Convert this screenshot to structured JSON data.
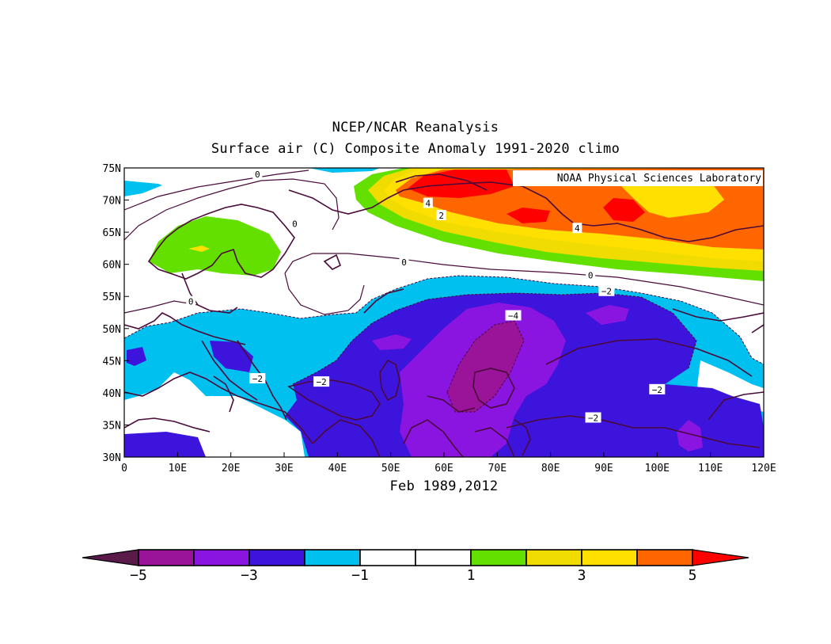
{
  "title": "NCEP/NCAR Reanalysis",
  "subtitle": "Surface air (C) Composite Anomaly 1991-2020 climo",
  "time_label": "Feb 1989,2012",
  "credit": "NOAA Physical Sciences Laboratory",
  "lat_labels": [
    "30N",
    "35N",
    "40N",
    "45N",
    "50N",
    "55N",
    "60N",
    "65N",
    "70N",
    "75N"
  ],
  "lon_labels": [
    "0",
    "10E",
    "20E",
    "30E",
    "40E",
    "50E",
    "60E",
    "70E",
    "80E",
    "90E",
    "100E",
    "110E",
    "120E"
  ],
  "contour_labels": [
    {
      "text": "0",
      "lon": 25,
      "lat": 74
    },
    {
      "text": "0",
      "lon": 32,
      "lat": 66.3
    },
    {
      "text": "0",
      "lon": 52.5,
      "lat": 60.3
    },
    {
      "text": "0",
      "lon": 87.5,
      "lat": 58.3
    },
    {
      "text": "0",
      "lon": 12.5,
      "lat": 54.2
    },
    {
      "text": "4",
      "lon": 57,
      "lat": 69.5
    },
    {
      "text": "2",
      "lon": 59.5,
      "lat": 67.6
    },
    {
      "text": "4",
      "lon": 85,
      "lat": 65.6
    },
    {
      "text": "−2",
      "lon": 90.5,
      "lat": 55.8
    },
    {
      "text": "−4",
      "lon": 73,
      "lat": 52
    },
    {
      "text": "−2",
      "lon": 25,
      "lat": 42.2
    },
    {
      "text": "−2",
      "lon": 37,
      "lat": 41.7
    },
    {
      "text": "−2",
      "lon": 100,
      "lat": 40.5
    },
    {
      "text": "−2",
      "lon": 88,
      "lat": 36.1
    }
  ],
  "colorbar": {
    "bins": [
      "#5a1a4a",
      "#9a149a",
      "#8a14e0",
      "#3c14dc",
      "#00c0f0",
      "#ffffff",
      "#ffffff",
      "#64e000",
      "#f0dc00",
      "#ffe000",
      "#ff6600",
      "#ff0000"
    ],
    "tick_labels": [
      "−5",
      "−3",
      "−1",
      "1",
      "3",
      "5"
    ]
  },
  "colors": {
    "coastline": "#4a0a3a",
    "contour": "#4a0a3a"
  }
}
